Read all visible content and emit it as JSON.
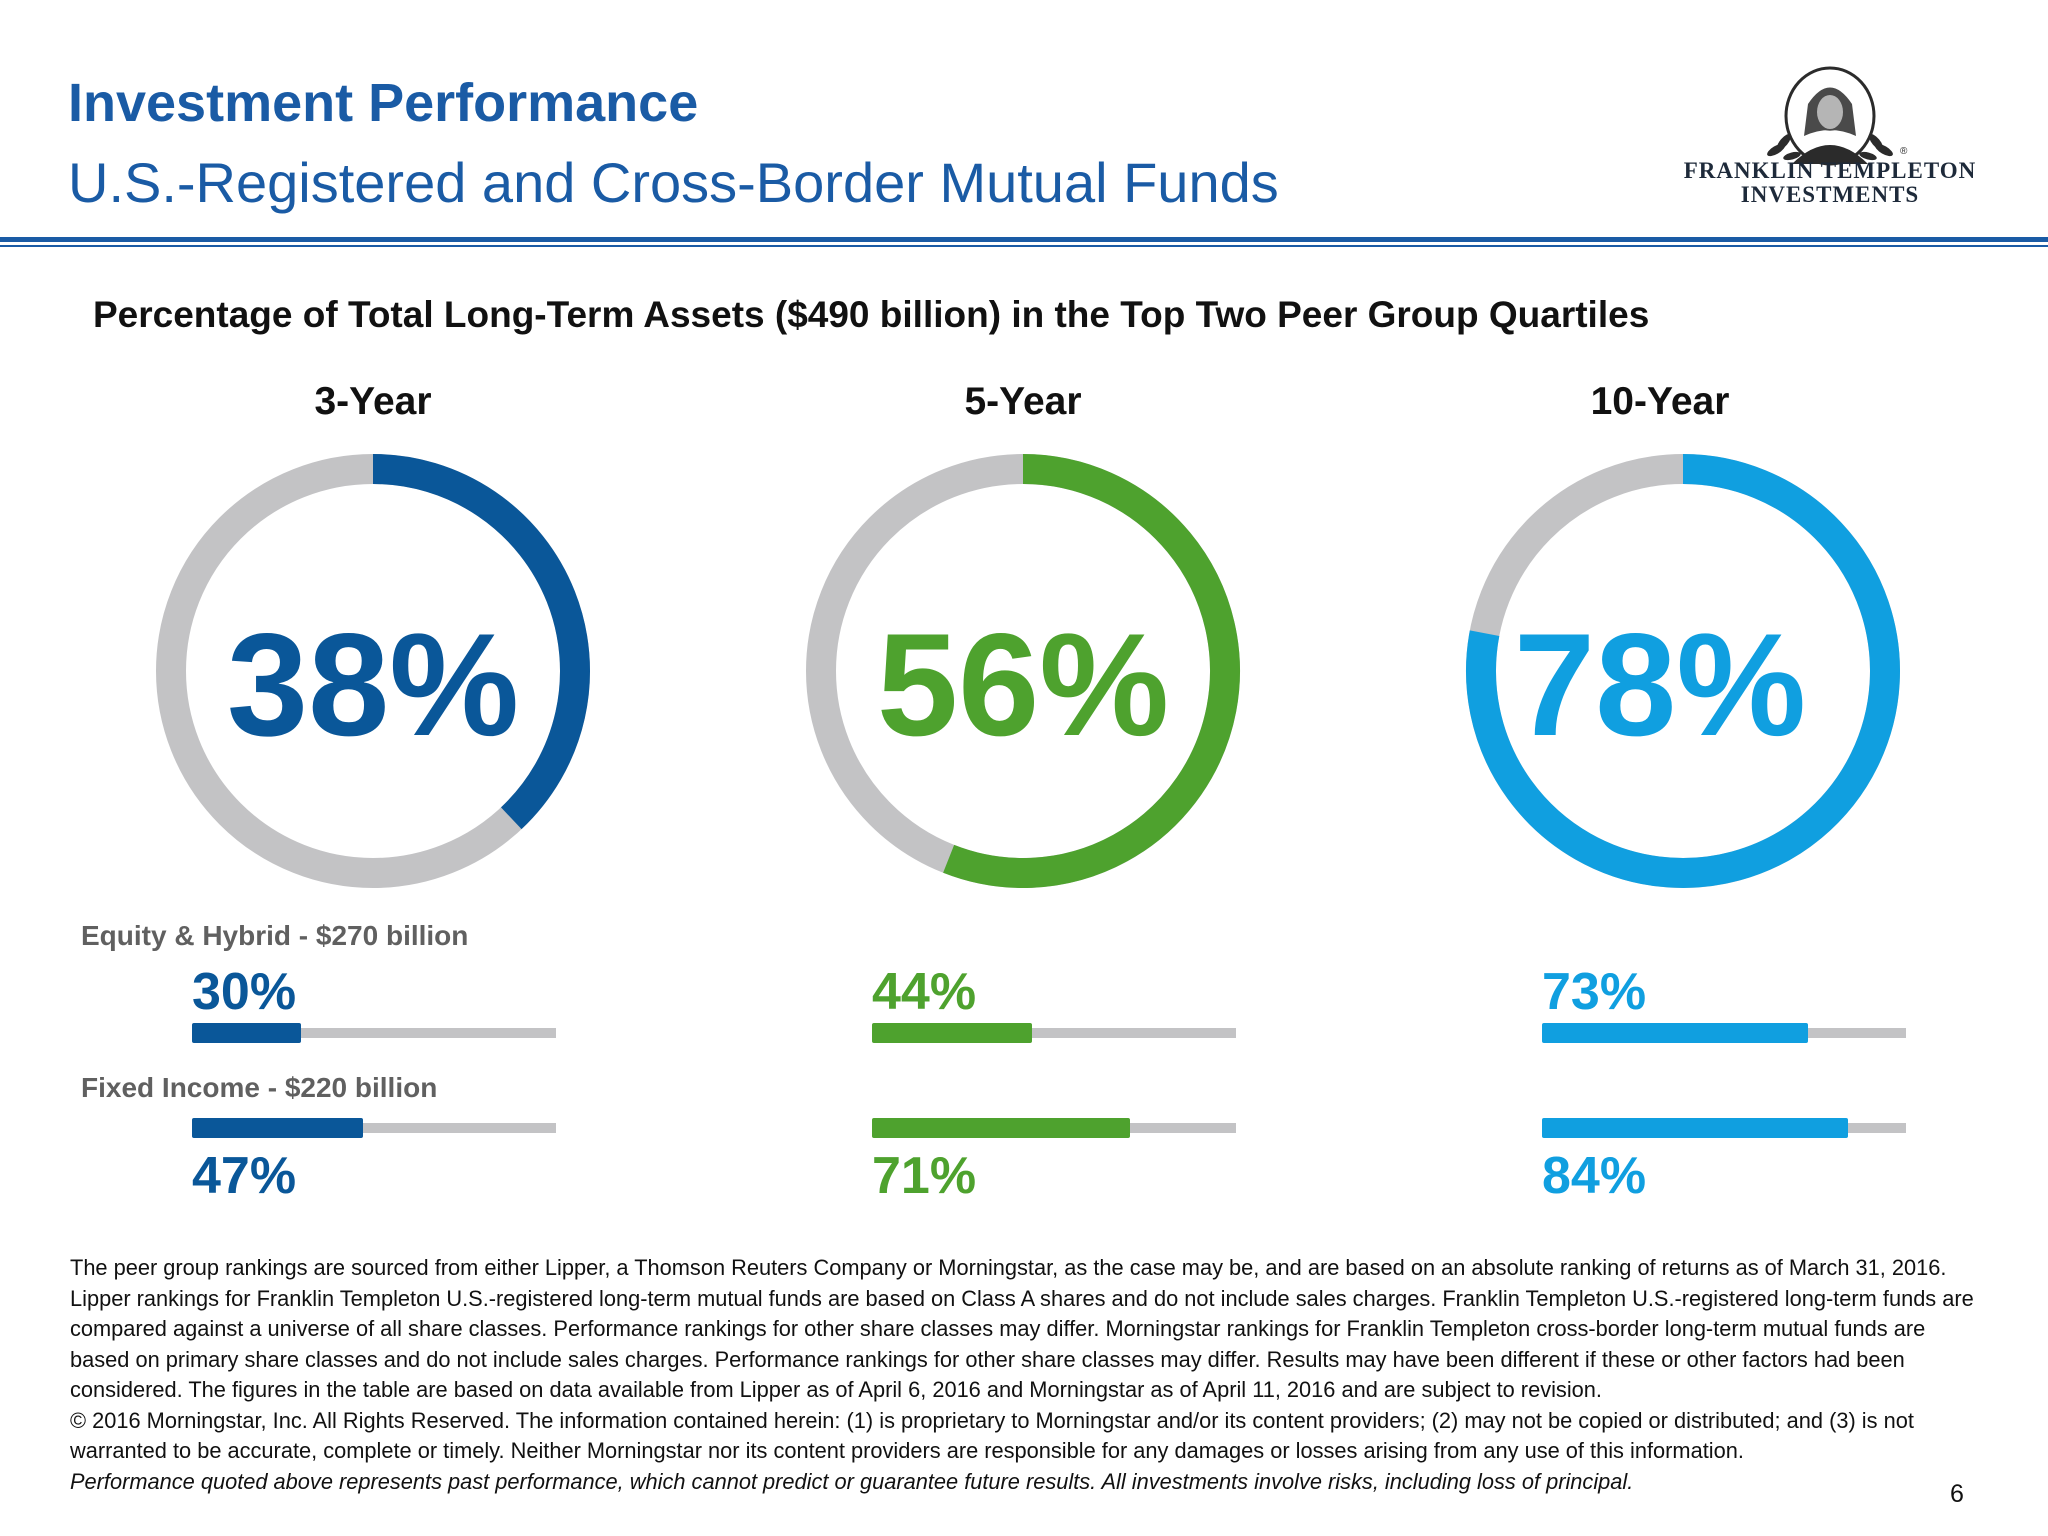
{
  "header": {
    "title": "Investment Performance",
    "subtitle": "U.S.-Registered and Cross-Border Mutual Funds",
    "logo_line1": "FRANKLIN TEMPLETON",
    "logo_line2": "INVESTMENTS",
    "logo_mark": "®"
  },
  "colors": {
    "blue_dark": "#0a5799",
    "green": "#4ea22e",
    "blue_light": "#109fe0",
    "gray_track": "#c3c3c5",
    "title_blue": "#1a5ba5"
  },
  "chart_data": {
    "type": "donut",
    "title": "Percentage of Total Long-Term Assets ($490 billion) in the Top Two Peer Group Quartiles",
    "categories": [
      "3-Year",
      "5-Year",
      "10-Year"
    ],
    "values": [
      38,
      56,
      78
    ],
    "value_labels": [
      "38%",
      "56%",
      "78%"
    ],
    "unit": "%",
    "series_colors": [
      "#0a5799",
      "#4ea22e",
      "#109fe0"
    ],
    "breakdown": [
      {
        "name": "Equity & Hybrid - $270 billion",
        "values": [
          30,
          44,
          73
        ],
        "value_labels": [
          "30%",
          "44%",
          "73%"
        ]
      },
      {
        "name": "Fixed Income - $220 billion",
        "values": [
          47,
          71,
          84
        ],
        "value_labels": [
          "47%",
          "71%",
          "84%"
        ]
      }
    ]
  },
  "footnote": {
    "para1": "The peer group rankings are sourced from either Lipper, a Thomson Reuters Company or Morningstar, as the case may be, and are based on an absolute ranking of returns as of March 31, 2016. Lipper rankings for Franklin Templeton U.S.-registered long-term mutual funds are based on Class A shares and do not include sales charges. Franklin Templeton U.S.-registered long-term funds are compared against a universe of all share classes. Performance rankings for other share classes may differ. Morningstar rankings for Franklin Templeton cross-border long-term mutual funds are based on primary share classes and do not include sales charges. Performance rankings for other share classes may differ. Results may have been different if these or other factors had been considered. The figures in the table are based on data available from Lipper as of April 6, 2016 and Morningstar as of April 11, 2016 and are subject to revision.",
    "para2": "© 2016 Morningstar, Inc. All Rights Reserved. The information contained herein: (1) is proprietary to Morningstar and/or its content providers; (2) may not be copied or distributed; and (3) is not warranted to be accurate, complete or timely. Neither Morningstar nor its content providers are responsible for any damages or losses arising from any use of this information.",
    "para3": "Performance quoted above represents past performance, which cannot predict or guarantee future results.  All investments involve risks, including loss of principal."
  },
  "page_number": "6"
}
